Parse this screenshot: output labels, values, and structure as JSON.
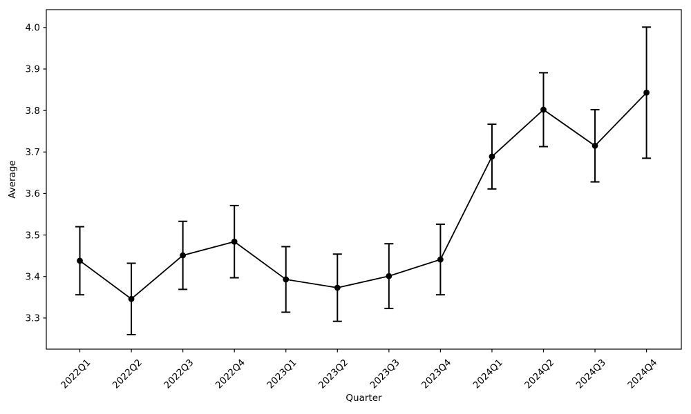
{
  "chart_data": {
    "type": "line",
    "title": "",
    "xlabel": "Quarter",
    "ylabel": "Average",
    "categories": [
      "2022Q1",
      "2022Q2",
      "2022Q3",
      "2022Q4",
      "2023Q1",
      "2023Q2",
      "2023Q3",
      "2023Q4",
      "2024Q1",
      "2024Q2",
      "2024Q3",
      "2024Q4"
    ],
    "series": [
      {
        "name": "Average",
        "values": [
          3.438,
          3.346,
          3.451,
          3.484,
          3.393,
          3.373,
          3.401,
          3.441,
          3.689,
          3.802,
          3.715,
          3.843
        ],
        "errors": [
          0.082,
          0.086,
          0.082,
          0.087,
          0.079,
          0.081,
          0.078,
          0.085,
          0.078,
          0.089,
          0.087,
          0.158
        ]
      }
    ],
    "yticks": [
      3.3,
      3.4,
      3.5,
      3.6,
      3.7,
      3.8,
      3.9,
      4.0
    ],
    "ylim": [
      3.225,
      4.043
    ],
    "xlim": [
      -0.651,
      11.676
    ],
    "grid": false,
    "legend_position": "none",
    "x_tick_rotation_deg": 45,
    "line_color": "#000000",
    "marker": "o",
    "marker_color": "#000000",
    "background_color": "#ffffff",
    "axis_color": "#000000"
  }
}
